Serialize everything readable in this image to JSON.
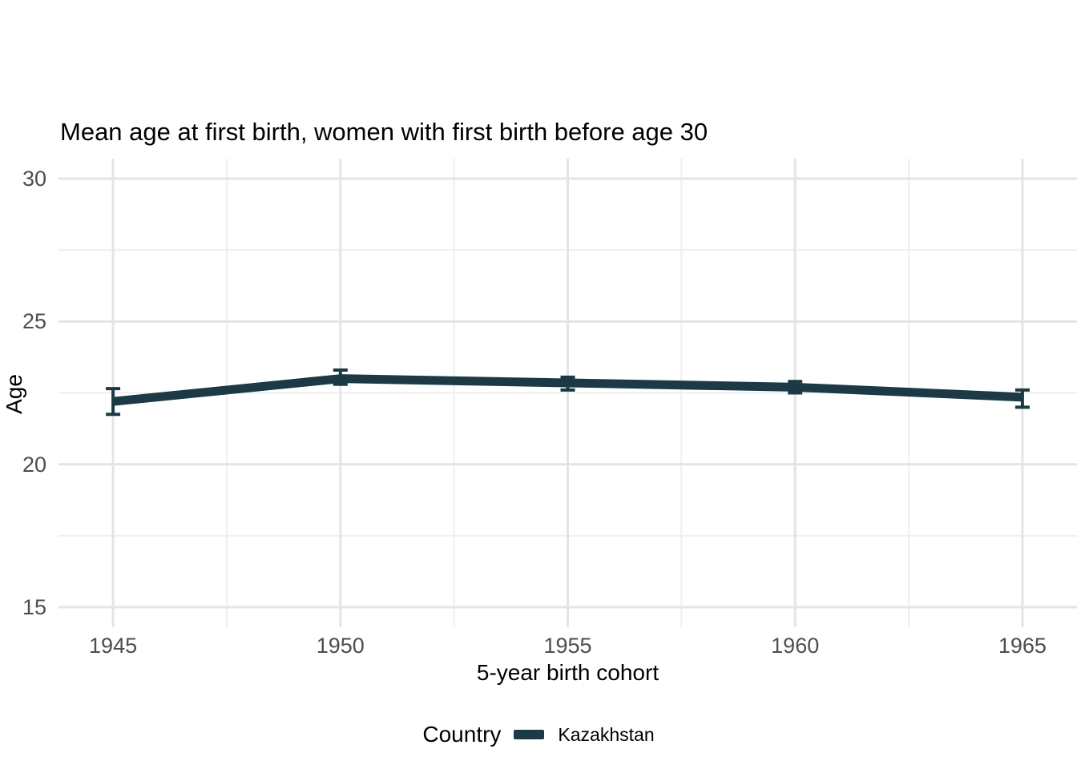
{
  "chart_data": {
    "type": "line",
    "title": "Mean age at first birth, women with first birth before age 30",
    "xlabel": "5-year birth cohort",
    "ylabel": "Age",
    "x": [
      1945,
      1950,
      1955,
      1960,
      1965
    ],
    "series": [
      {
        "name": "Kazakhstan",
        "color": "#1b3a46",
        "values": [
          22.2,
          23.0,
          22.85,
          22.7,
          22.35
        ],
        "error_low": [
          21.75,
          22.8,
          22.6,
          22.5,
          22.0
        ],
        "error_high": [
          22.65,
          23.3,
          23.05,
          22.9,
          22.6
        ]
      }
    ],
    "x_range": [
      1943.8,
      1966.2
    ],
    "y_range": [
      14.3,
      30.7
    ],
    "x_ticks": [
      "1945",
      "1950",
      "1955",
      "1960",
      "1965"
    ],
    "x_tick_values": [
      1945,
      1950,
      1955,
      1960,
      1965
    ],
    "y_ticks": [
      "15",
      "20",
      "25",
      "30"
    ],
    "y_tick_values": [
      15,
      20,
      25,
      30
    ],
    "x_minor": [
      1947.5,
      1952.5,
      1957.5,
      1962.5
    ],
    "y_minor": [
      17.5,
      22.5,
      27.5
    ],
    "grid": true,
    "legend_position": "bottom",
    "colors": {
      "background": "#ffffff",
      "grid_major": "#e4e4e4",
      "grid_minor": "#efefef",
      "tick_label": "#4d4d4d",
      "text": "#000000"
    }
  },
  "legend": {
    "title": "Country",
    "items": [
      {
        "label": "Kazakhstan",
        "color": "#1b3a46"
      }
    ]
  }
}
